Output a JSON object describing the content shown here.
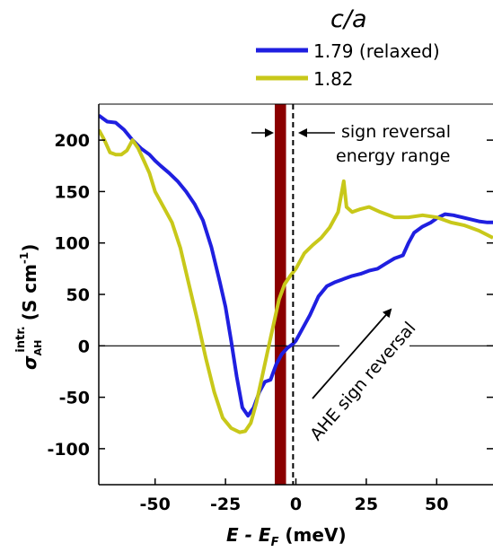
{
  "chart_data": {
    "type": "line",
    "xlabel": {
      "main": "E - E",
      "sub": "F",
      "unit": " (meV)"
    },
    "ylabel": {
      "sigma": "σ",
      "sub": "AH",
      "sup": "intr.",
      "unit": "(S cm",
      "unit_sup": "-1",
      "unit_close": ")"
    },
    "xlim": [
      -70,
      70
    ],
    "ylim": [
      -135,
      235
    ],
    "xticks": [
      "-50",
      "-25",
      "0",
      "25",
      "50"
    ],
    "xtick_values": [
      -50,
      -25,
      0,
      25,
      50
    ],
    "yticks": [
      "-100",
      "-50",
      "0",
      "50",
      "100",
      "150",
      "200"
    ],
    "ytick_values": [
      -100,
      -50,
      0,
      50,
      100,
      150,
      200
    ],
    "legend_title": "c/a",
    "legend_title_c": "c",
    "legend_title_slash": "/",
    "legend_title_a": "a",
    "legend_placement": "top-right (above plot)",
    "series": [
      {
        "name": "1.79 (relaxed)",
        "color": "#1f1fe0",
        "x": [
          -70,
          -67,
          -64,
          -61,
          -58,
          -55,
          -52,
          -50,
          -48,
          -45,
          -42,
          -39,
          -36,
          -33,
          -30,
          -27,
          -25,
          -23,
          -21,
          -19,
          -17,
          -15,
          -13,
          -11,
          -9,
          -7,
          -5,
          -3,
          -1,
          0,
          2,
          5,
          8,
          11,
          14,
          17,
          20,
          23,
          26,
          29,
          32,
          35,
          38,
          40,
          42,
          45,
          48,
          50,
          53,
          56,
          59,
          62,
          65,
          68,
          70
        ],
        "y": [
          224,
          218,
          217,
          210,
          200,
          192,
          186,
          180,
          175,
          168,
          160,
          150,
          138,
          122,
          96,
          62,
          38,
          5,
          -30,
          -60,
          -68,
          -60,
          -45,
          -35,
          -33,
          -18,
          -8,
          -2,
          2,
          5,
          15,
          30,
          48,
          58,
          62,
          65,
          68,
          70,
          73,
          75,
          80,
          85,
          88,
          100,
          110,
          116,
          120,
          124,
          128,
          127,
          125,
          123,
          121,
          120,
          120
        ]
      },
      {
        "name": "1.82",
        "color": "#c8c81a",
        "x": [
          -70,
          -68,
          -66,
          -64,
          -62,
          -60,
          -58,
          -56,
          -54,
          -52,
          -50,
          -47,
          -44,
          -41,
          -38,
          -35,
          -32,
          -29,
          -26,
          -23,
          -20,
          -18,
          -16,
          -14,
          -12,
          -10,
          -8,
          -6,
          -4,
          -2,
          0,
          3,
          6,
          9,
          12,
          15,
          17,
          18,
          20,
          23,
          26,
          30,
          35,
          40,
          45,
          50,
          55,
          60,
          65,
          70
        ],
        "y": [
          210,
          200,
          188,
          186,
          186,
          190,
          200,
          192,
          180,
          168,
          150,
          135,
          120,
          95,
          60,
          25,
          -12,
          -45,
          -70,
          -80,
          -84,
          -83,
          -75,
          -55,
          -30,
          -5,
          20,
          45,
          60,
          68,
          75,
          90,
          98,
          105,
          115,
          130,
          160,
          135,
          130,
          133,
          135,
          130,
          125,
          125,
          127,
          125,
          120,
          117,
          112,
          105
        ]
      }
    ],
    "band": {
      "x_range": [
        -7.5,
        -3.5
      ],
      "color": "#8b0000"
    },
    "dashed_line_x": -1,
    "annotations": {
      "sign_reversal_line1": "sign reversal",
      "sign_reversal_line2": "energy range",
      "ahe_label": "AHE sign reversal"
    }
  }
}
